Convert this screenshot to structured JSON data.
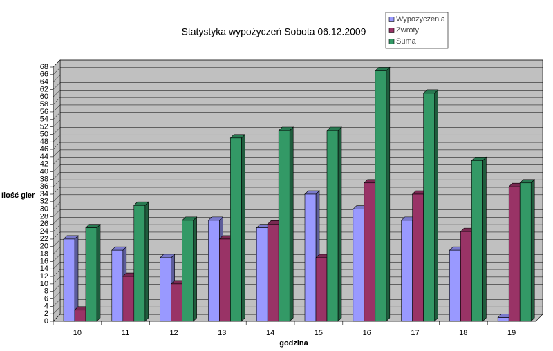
{
  "chart_data": {
    "type": "bar3d",
    "title": "Statystyka wypożyczeń Sobota 06.12.2009",
    "x_label": "godzina",
    "y_label": "Ilość gier",
    "categories": [
      "10",
      "11",
      "12",
      "13",
      "14",
      "15",
      "16",
      "17",
      "18",
      "19"
    ],
    "series": [
      {
        "name": "Wypozyczenia",
        "color": "#9999ff",
        "values": [
          22,
          19,
          17,
          27,
          25,
          34,
          30,
          27,
          19,
          1
        ]
      },
      {
        "name": "Zwroty",
        "color": "#993366",
        "values": [
          3,
          12,
          10,
          22,
          26,
          17,
          37,
          34,
          24,
          36
        ]
      },
      {
        "name": "Suma",
        "color": "#339966",
        "values": [
          25,
          31,
          27,
          49,
          51,
          51,
          67,
          61,
          43,
          37
        ]
      }
    ],
    "ylim": [
      0,
      68
    ],
    "yticks": [
      0,
      2,
      4,
      6,
      8,
      10,
      12,
      14,
      16,
      18,
      20,
      22,
      24,
      26,
      28,
      30,
      32,
      34,
      36,
      38,
      40,
      42,
      44,
      46,
      48,
      50,
      52,
      54,
      56,
      58,
      60,
      62,
      64,
      66,
      68
    ],
    "grid": true,
    "wall_color": "#c0c0c0",
    "legend_position": "top-right"
  }
}
